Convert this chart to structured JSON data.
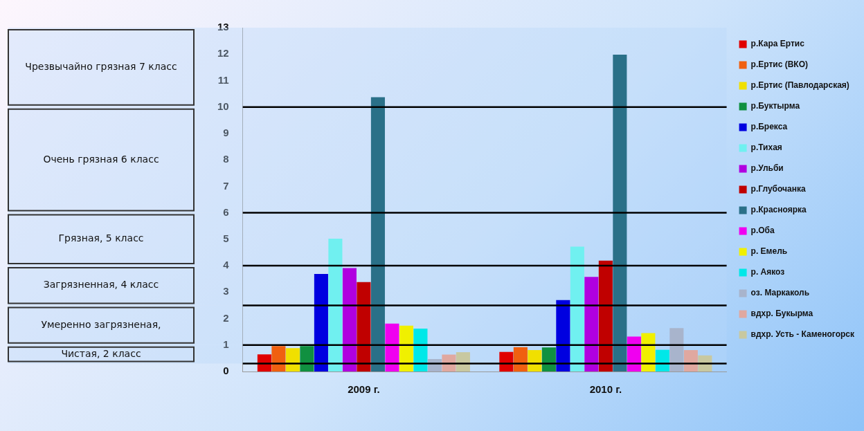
{
  "chart_data": {
    "type": "bar",
    "categories": [
      "2009 г.",
      "2010 г."
    ],
    "ylim": [
      0,
      13
    ],
    "yticks": [
      0,
      1,
      2,
      3,
      4,
      5,
      6,
      7,
      8,
      9,
      10,
      11,
      12,
      13
    ],
    "grid": false,
    "legend": "right",
    "series": [
      {
        "name": "р.Кара Ертис",
        "color": "#e00000",
        "values": [
          0.65,
          0.74
        ]
      },
      {
        "name": "р.Ертис (ВКО)",
        "color": "#f06010",
        "values": [
          0.96,
          0.92
        ]
      },
      {
        "name": "р.Ертис (Павлодарская)",
        "color": "#f0e000",
        "values": [
          0.88,
          0.81
        ]
      },
      {
        "name": "р.Буктырма",
        "color": "#109040",
        "values": [
          0.96,
          0.91
        ]
      },
      {
        "name": "р.Брекса",
        "color": "#0000e0",
        "values": [
          3.69,
          2.7
        ]
      },
      {
        "name": "р.Тихая",
        "color": "#70f0f0",
        "values": [
          5.02,
          4.72
        ]
      },
      {
        "name": "р.Ульби",
        "color": "#b000e0",
        "values": [
          3.91,
          3.58
        ]
      },
      {
        "name": "р.Глубочанка",
        "color": "#c00000",
        "values": [
          3.38,
          4.19
        ]
      },
      {
        "name": "р.Красноярка",
        "color": "#2a7088",
        "values": [
          10.37,
          11.98
        ]
      },
      {
        "name": "р.Оба",
        "color": "#f000f0",
        "values": [
          1.81,
          1.32
        ]
      },
      {
        "name": "р. Емель",
        "color": "#f0f000",
        "values": [
          1.73,
          1.45
        ]
      },
      {
        "name": "р. Аякоз",
        "color": "#00e8e8",
        "values": [
          1.62,
          0.82
        ]
      },
      {
        "name": "оз. Маркаколь",
        "color": "#a8b4cc",
        "values": [
          0.47,
          1.64
        ]
      },
      {
        "name": "вдхр. Букырма",
        "color": "#e0a8a0",
        "values": [
          0.64,
          0.81
        ]
      },
      {
        "name": "вдхр. Усть - Каменогорск",
        "color": "#c8c8a0",
        "values": [
          0.73,
          0.61
        ]
      }
    ],
    "ref_lines": [
      {
        "axis": "y",
        "value": 0.3,
        "color": "#000000"
      },
      {
        "axis": "y",
        "value": 1,
        "color": "#000000"
      },
      {
        "axis": "y",
        "value": 2.5,
        "color": "#000000"
      },
      {
        "axis": "y",
        "value": 4,
        "color": "#000000"
      },
      {
        "axis": "y",
        "value": 6,
        "color": "#000000"
      },
      {
        "axis": "y",
        "value": 10,
        "color": "#000000"
      }
    ],
    "bands": [
      {
        "axis": "y",
        "from": 10,
        "to": 13,
        "label": "Чрезвычайно грязная 7 класс",
        "color": "#b8d8fa"
      },
      {
        "axis": "y",
        "from": 6,
        "to": 10,
        "label": "Очень грязная 6 класс",
        "color": "#b8d8fa"
      },
      {
        "axis": "y",
        "from": 4,
        "to": 6,
        "label": "Грязная, 5 класс",
        "color": "#b8d8fa"
      },
      {
        "axis": "y",
        "from": 2.5,
        "to": 4,
        "label": "Загрязненная, 4 класс",
        "color": "#b8d8fa"
      },
      {
        "axis": "y",
        "from": 1,
        "to": 2.5,
        "label": "Умеренно загрязненая,",
        "color": "#b8d8fa"
      },
      {
        "axis": "y",
        "from": 0.3,
        "to": 1,
        "label": "Чистая, 2 класс",
        "color": "#b8d8fa"
      }
    ]
  }
}
